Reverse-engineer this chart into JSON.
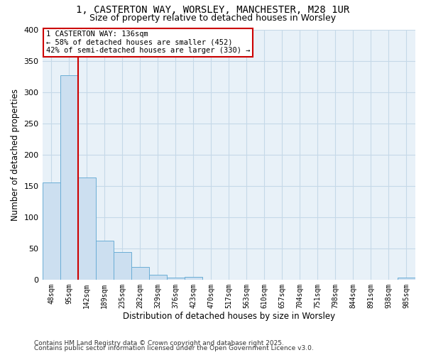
{
  "title_line1": "1, CASTERTON WAY, WORSLEY, MANCHESTER, M28 1UR",
  "title_line2": "Size of property relative to detached houses in Worsley",
  "xlabel": "Distribution of detached houses by size in Worsley",
  "ylabel": "Number of detached properties",
  "bin_labels": [
    "48sqm",
    "95sqm",
    "142sqm",
    "189sqm",
    "235sqm",
    "282sqm",
    "329sqm",
    "376sqm",
    "423sqm",
    "470sqm",
    "517sqm",
    "563sqm",
    "610sqm",
    "657sqm",
    "704sqm",
    "751sqm",
    "798sqm",
    "844sqm",
    "891sqm",
    "938sqm",
    "985sqm"
  ],
  "bar_values": [
    155,
    327,
    163,
    62,
    44,
    20,
    8,
    3,
    4,
    0,
    0,
    0,
    0,
    0,
    0,
    0,
    0,
    0,
    0,
    0,
    3
  ],
  "bar_color": "#ccdff0",
  "bar_edge_color": "#6baed6",
  "vline_color": "#cc0000",
  "annotation_text": "1 CASTERTON WAY: 136sqm\n← 58% of detached houses are smaller (452)\n42% of semi-detached houses are larger (330) →",
  "annotation_box_color": "#cc0000",
  "ylim": [
    0,
    400
  ],
  "yticks": [
    0,
    50,
    100,
    150,
    200,
    250,
    300,
    350,
    400
  ],
  "grid_color": "#c5d9e8",
  "background_color": "#e8f1f8",
  "footer_line1": "Contains HM Land Registry data © Crown copyright and database right 2025.",
  "footer_line2": "Contains public sector information licensed under the Open Government Licence v3.0."
}
